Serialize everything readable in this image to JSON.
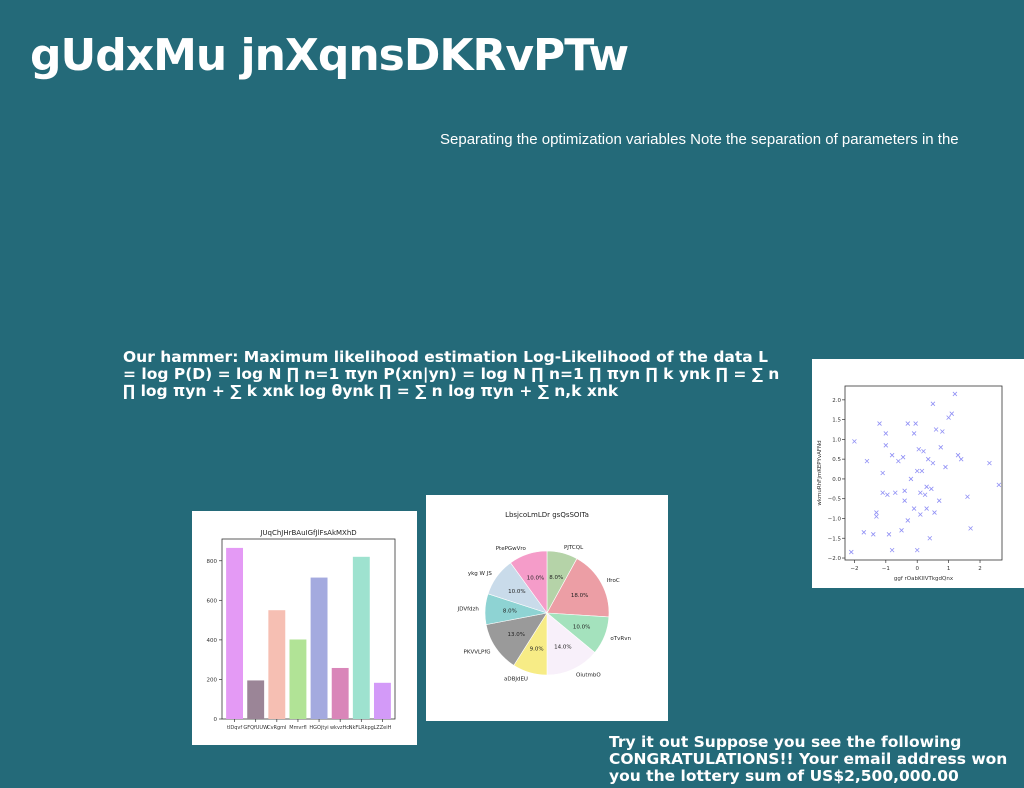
{
  "page": {
    "title": "gUdxMu jnXqnsDKRvPTw",
    "subtitle": "Separating the optimization variables Note the separation of parameters in the",
    "paragraph_1": "Our hammer: Maximum likelihood estimation Log-Likelihood of the data L = log P(D) = log N ∏ n=1 πyn P(xn|yn) = log N ∏ n=1 ∏ πyn ∏ k ynk ∏ = ∑ n ∏ log πyn + ∑ k xnk log θynk ∏ = ∑ n log πyn + ∑ n,k xnk",
    "paragraph_2": "Try it out Suppose you see the following CONGRATULATIONS!! Your email address won you the lottery sum of US$2,500,000.00",
    "background_color": "#246a79"
  },
  "chart_data": [
    {
      "type": "scatter",
      "xlabel": "ggf rOabKlIVTkgdQnx",
      "ylabel": "wkmuRhFjmKEPYvAFNd",
      "xlim": [
        -2.3,
        2.7
      ],
      "ylim": [
        -2.05,
        2.35
      ],
      "xticks": [
        "−2",
        "−1",
        "0",
        "1",
        "2"
      ],
      "yticks": [
        "−2.0",
        "−1.5",
        "−1.0",
        "−0.5",
        "0.0",
        "0.5",
        "1.0",
        "1.5",
        "2.0"
      ],
      "marker": "x",
      "color": "#8f8ff5",
      "x": [
        -2.1,
        -2.0,
        -1.7,
        -1.6,
        -1.4,
        -1.3,
        -1.3,
        -1.2,
        -1.1,
        -1.1,
        -1.0,
        -1.0,
        -0.95,
        -0.9,
        -0.8,
        -0.8,
        -0.7,
        -0.6,
        -0.5,
        -0.45,
        -0.4,
        -0.4,
        -0.3,
        -0.3,
        -0.2,
        -0.1,
        -0.1,
        -0.05,
        0.0,
        0.0,
        0.05,
        0.1,
        0.1,
        0.15,
        0.2,
        0.25,
        0.3,
        0.3,
        0.35,
        0.4,
        0.45,
        0.5,
        0.5,
        0.55,
        0.6,
        0.7,
        0.75,
        0.8,
        0.9,
        1.0,
        1.1,
        1.2,
        1.3,
        1.4,
        1.6,
        1.7,
        2.3,
        2.6
      ],
      "y": [
        -1.85,
        0.95,
        -1.35,
        0.45,
        -1.4,
        -0.95,
        -0.85,
        1.4,
        0.15,
        -0.35,
        1.15,
        0.85,
        -0.4,
        -1.4,
        0.6,
        -1.8,
        -0.35,
        0.45,
        -1.3,
        0.55,
        -0.3,
        -0.55,
        1.4,
        -1.05,
        0.0,
        1.15,
        -0.75,
        1.4,
        -1.8,
        0.2,
        0.75,
        -0.35,
        -0.9,
        0.2,
        0.7,
        -0.4,
        -0.75,
        -0.2,
        0.5,
        -1.5,
        -0.25,
        0.4,
        1.9,
        -0.85,
        1.25,
        -0.55,
        0.8,
        1.2,
        0.3,
        1.55,
        1.65,
        2.15,
        0.6,
        0.5,
        -0.45,
        -1.25,
        0.4,
        -0.15
      ]
    },
    {
      "type": "bar",
      "title": "JUqChJHrBAuIGfJlFsAkMXhD",
      "categories": [
        "tIDqvf",
        "GFQfUUW",
        "CvRgmI",
        "Mmvrfl",
        "HGOjtyi",
        "wkvzHcl",
        "NkFLRkpg",
        "LZZeiH"
      ],
      "values": [
        865,
        195,
        550,
        402,
        715,
        258,
        820,
        183
      ],
      "colors": [
        "#e49af5",
        "#9b8597",
        "#f6bfb3",
        "#b1e396",
        "#a4aadf",
        "#d986b9",
        "#9ee2cf",
        "#d39af8"
      ],
      "ylim": [
        0,
        910
      ],
      "yticks": [
        0,
        200,
        400,
        600,
        800
      ]
    },
    {
      "type": "pie",
      "title": "LbsjcoLmLDr gsQsSOITa",
      "labels": [
        "PJTCQL",
        "IfroC",
        "oTvRvn",
        "OiutmbO",
        "aDBJdEU",
        "PKVVLPfG",
        "JDVfdzh",
        "ykg W JS",
        "PtePGwVro"
      ],
      "values": [
        8.0,
        18.0,
        10.0,
        14.0,
        9.0,
        13.0,
        8.0,
        10.0,
        10.0
      ],
      "value_labels": [
        "8.0%",
        "18.0%",
        "10.0%",
        "14.0%",
        "9.0%",
        "13.0%",
        "8.0%",
        "10.0%",
        "10.0%"
      ],
      "colors": [
        "#b5d3a8",
        "#ec9ea5",
        "#a4e2bd",
        "#f8f0fa",
        "#f7ec86",
        "#9a9a9a",
        "#8ed3d3",
        "#c9dbea",
        "#f59cc9"
      ]
    }
  ]
}
